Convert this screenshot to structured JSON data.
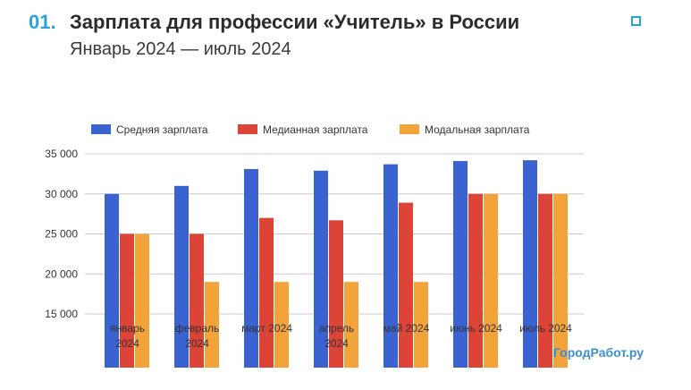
{
  "header": {
    "number": "01.",
    "title": "Зарплата для профессии «Учитель» в России",
    "subtitle": "Январь 2024 — июль 2024",
    "corner_icon": "square-outline-icon"
  },
  "watermark": "ГородРабот.ру",
  "chart_data": {
    "type": "bar",
    "categories": [
      [
        "январь",
        "2024"
      ],
      [
        "февраль",
        "2024"
      ],
      [
        "март 2024"
      ],
      [
        "апрель",
        "2024"
      ],
      [
        "май 2024"
      ],
      [
        "июнь 2024"
      ],
      [
        "июль 2024"
      ]
    ],
    "series": [
      {
        "name": "Средняя зарплата",
        "color": "#3a63d1",
        "values": [
          30000,
          31000,
          33100,
          32900,
          33700,
          34100,
          34200
        ]
      },
      {
        "name": "Медианная зарплата",
        "color": "#dc4437",
        "values": [
          25000,
          25000,
          27000,
          26700,
          28900,
          30000,
          30000
        ]
      },
      {
        "name": "Модальная зарплата",
        "color": "#f2a33a",
        "values": [
          25000,
          19000,
          19000,
          19000,
          19000,
          30000,
          30000
        ]
      }
    ],
    "yticks": [
      15000,
      20000,
      25000,
      30000,
      35000
    ],
    "ytick_labels": [
      "15 000",
      "20 000",
      "25 000",
      "30 000",
      "35 000"
    ],
    "ylim": [
      15000,
      35000
    ],
    "grid": true,
    "legend": "top"
  }
}
